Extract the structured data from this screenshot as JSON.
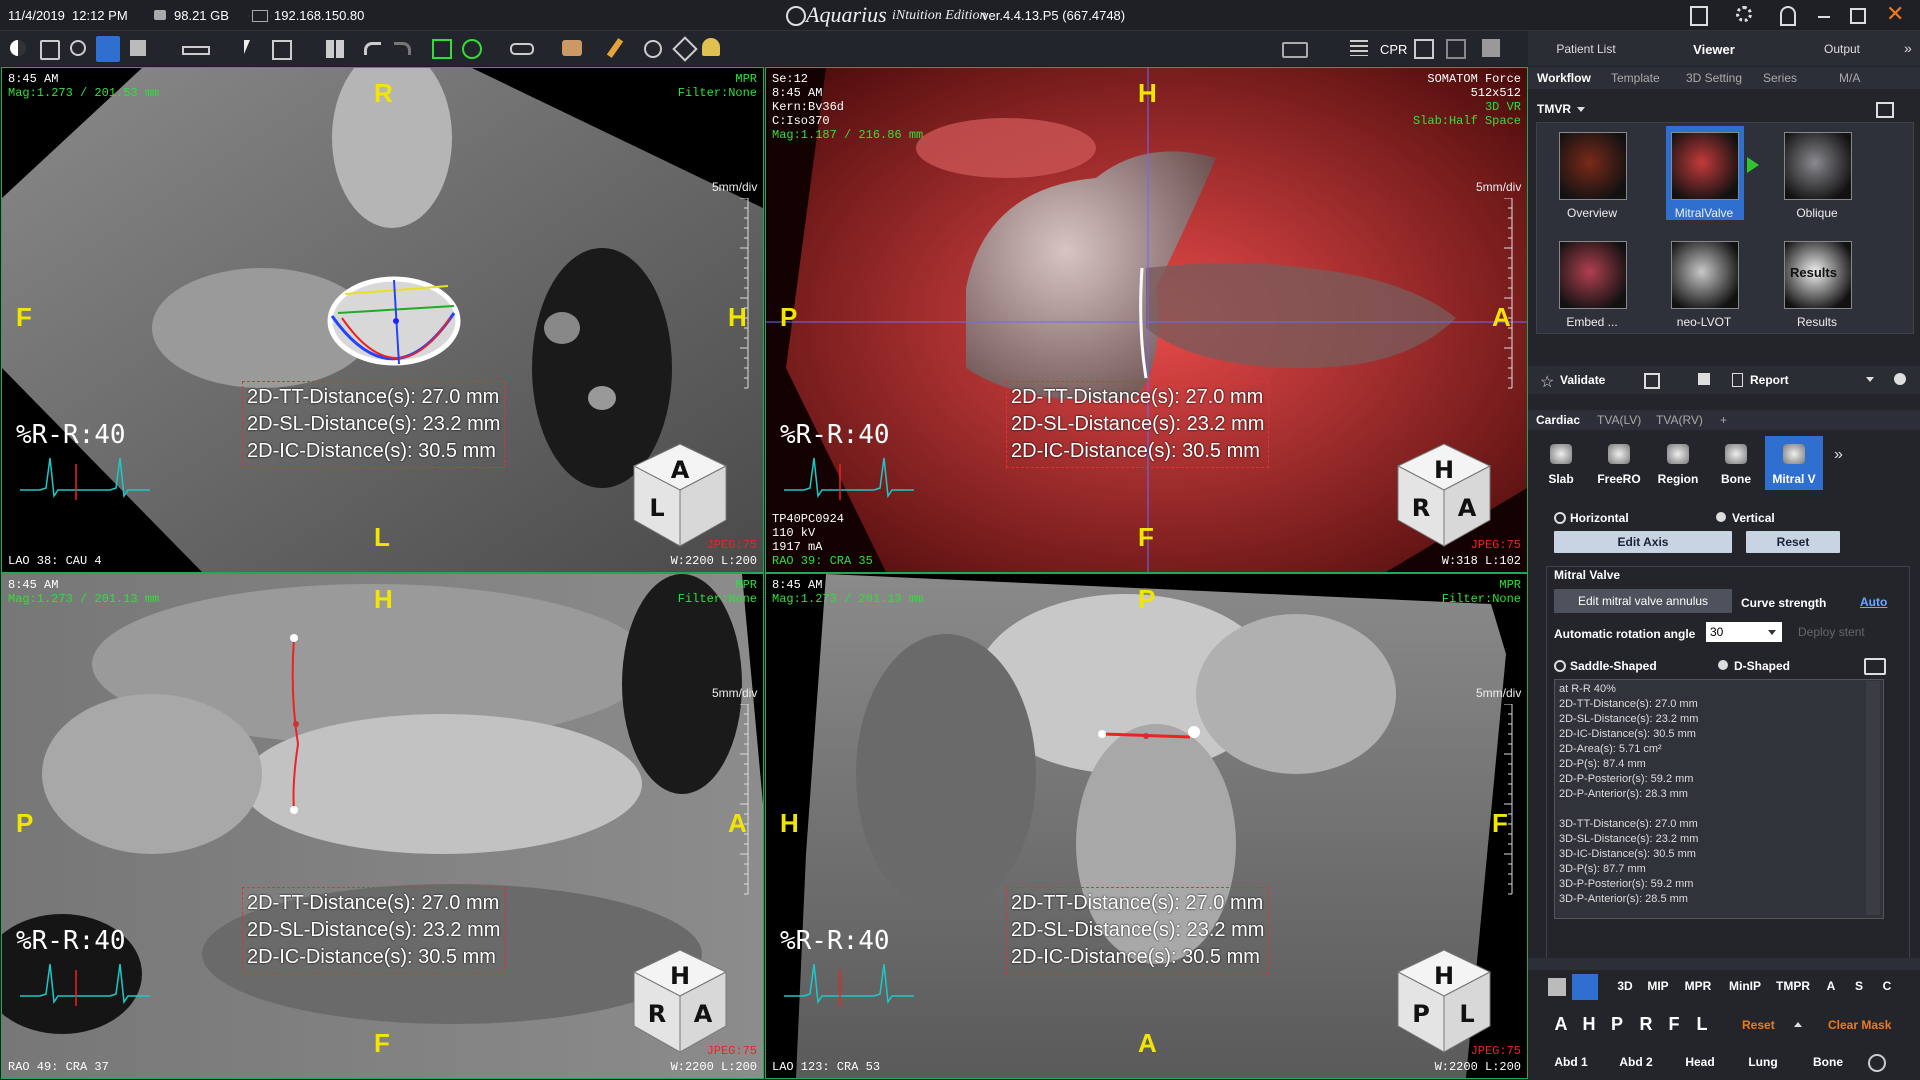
{
  "title_bar": {
    "date": "11/4/2019",
    "time": "12:12 PM",
    "disk": "98.21 GB",
    "ip": "192.168.150.80",
    "app": "Aquarius",
    "edition": "iNtuition Edition",
    "version": "ver.4.4.13.P5 (667.4748)"
  },
  "toolbar": {
    "cpr": "CPR"
  },
  "nav_tabs": [
    "Patient List",
    "Viewer",
    "Output"
  ],
  "sub_tabs": [
    "Workflow",
    "Template",
    "3D Setting",
    "Series",
    "M/A"
  ],
  "protocol": "TMVR",
  "workflow_steps": [
    "Overview",
    "MitralValve",
    "Oblique",
    "Embed ...",
    "neo-LVOT",
    "Results"
  ],
  "results_thumb": "Results",
  "validate": "Validate",
  "report": "Report",
  "cardiac_tabs": [
    "Cardiac",
    "TVA(LV)",
    "TVA(RV)",
    "+"
  ],
  "tools": [
    "Slab",
    "FreeRO",
    "Region",
    "Bone",
    "Mitral V"
  ],
  "axis": {
    "horizontal": "Horizontal",
    "vertical": "Vertical",
    "edit": "Edit Axis",
    "reset": "Reset"
  },
  "mitral": {
    "title": "Mitral Valve",
    "edit_annulus": "Edit mitral valve annulus",
    "curve_strength": "Curve strength",
    "auto": "Auto",
    "rotation_label": "Automatic rotation angle",
    "rotation_value": "30",
    "deploy": "Deploy stent",
    "saddle": "Saddle-Shaped",
    "d_shaped": "D-Shaped"
  },
  "results": {
    "header": "at R-R 40%",
    "lines_2d": [
      "2D-TT-Distance(s): 27.0 mm",
      "2D-SL-Distance(s): 23.2 mm",
      "2D-IC-Distance(s): 30.5 mm",
      "2D-Area(s): 5.71 cm²",
      "2D-P(s): 87.4 mm",
      "2D-P-Posterior(s): 59.2 mm",
      "2D-P-Anterior(s): 28.3 mm"
    ],
    "lines_3d": [
      "3D-TT-Distance(s): 27.0 mm",
      "3D-SL-Distance(s): 23.2 mm",
      "3D-IC-Distance(s): 30.5 mm",
      "3D-P(s): 87.7 mm",
      "3D-P-Posterior(s): 59.2 mm",
      "3D-P-Anterior(s): 28.5 mm"
    ]
  },
  "bottom_tools": [
    "3D",
    "MIP",
    "MPR",
    "MinIP",
    "TMPR",
    "A",
    "S",
    "C"
  ],
  "orient_buttons": [
    "A",
    "H",
    "P",
    "R",
    "F",
    "L"
  ],
  "bottom_reset": "Reset",
  "clear_mask": "Clear Mask",
  "presets": [
    "Abd 1",
    "Abd 2",
    "Head",
    "Lung",
    "Bone"
  ],
  "viewports": [
    {
      "info": [
        "8:45 AM"
      ],
      "mag": "Mag:1.273 / 201.53 mm",
      "right_status": [
        "MPR",
        "Filter:None"
      ],
      "orient": {
        "top": "R",
        "bottom": "L",
        "left": "F",
        "right": "H"
      },
      "scale": "5mm/div",
      "rr": "%R-R:40",
      "measurements": [
        "2D-TT-Distance(s): 27.0 mm",
        "2D-SL-Distance(s): 23.2 mm",
        "2D-IC-Distance(s): 30.5 mm"
      ],
      "view_angle": "LAO 38: CAU 4",
      "jpeg": "JPEG:75",
      "wl": "W:2200 L:200",
      "cube": [
        "A",
        "L"
      ]
    },
    {
      "info": [
        "Se:12",
        "8:45 AM",
        "Kern:Bv36d",
        "C:Iso370"
      ],
      "mag": "Mag:1.187 / 216.86 mm",
      "right_info": [
        "SOMATOM Force",
        "512x512"
      ],
      "right_status": [
        "3D VR",
        "Slab:Half Space"
      ],
      "orient": {
        "top": "H",
        "bottom": "F",
        "left": "P",
        "right": "A"
      },
      "scale": "5mm/div",
      "rr": "%R-R:40",
      "measurements": [
        "2D-TT-Distance(s): 27.0 mm",
        "2D-SL-Distance(s): 23.2 mm",
        "2D-IC-Distance(s): 30.5 mm"
      ],
      "bottom_info": [
        "TP40PC0924",
        "110 kV",
        "1917 mA"
      ],
      "view_angle": "RAO 39: CRA 35",
      "jpeg": "JPEG:75",
      "wl": "W:318 L:102",
      "cube": [
        "H",
        "R",
        "A"
      ]
    },
    {
      "info": [
        "8:45 AM"
      ],
      "mag": "Mag:1.273 / 201.13 mm",
      "right_status": [
        "MPR",
        "Filter:None"
      ],
      "orient": {
        "top": "H",
        "bottom": "F",
        "left": "P",
        "right": "A"
      },
      "scale": "5mm/div",
      "rr": "%R-R:40",
      "measurements": [
        "2D-TT-Distance(s): 27.0 mm",
        "2D-SL-Distance(s): 23.2 mm",
        "2D-IC-Distance(s): 30.5 mm"
      ],
      "view_angle": "RAO 49: CRA 37",
      "jpeg": "JPEG:75",
      "wl": "W:2200 L:200",
      "cube": [
        "H",
        "R",
        "A"
      ]
    },
    {
      "info": [
        "8:45 AM"
      ],
      "mag": "Mag:1.273 / 201.13 mm",
      "right_status": [
        "MPR",
        "Filter:None"
      ],
      "orient": {
        "top": "P",
        "bottom": "A",
        "left": "H",
        "right": "F"
      },
      "scale": "5mm/div",
      "rr": "%R-R:40",
      "measurements": [
        "2D-TT-Distance(s): 27.0 mm",
        "2D-SL-Distance(s): 23.2 mm",
        "2D-IC-Distance(s): 30.5 mm"
      ],
      "view_angle": "LAO 123: CRA 53",
      "jpeg": "JPEG:75",
      "wl": "W:2200 L:200",
      "cube": [
        "H",
        "P",
        "L"
      ]
    }
  ]
}
